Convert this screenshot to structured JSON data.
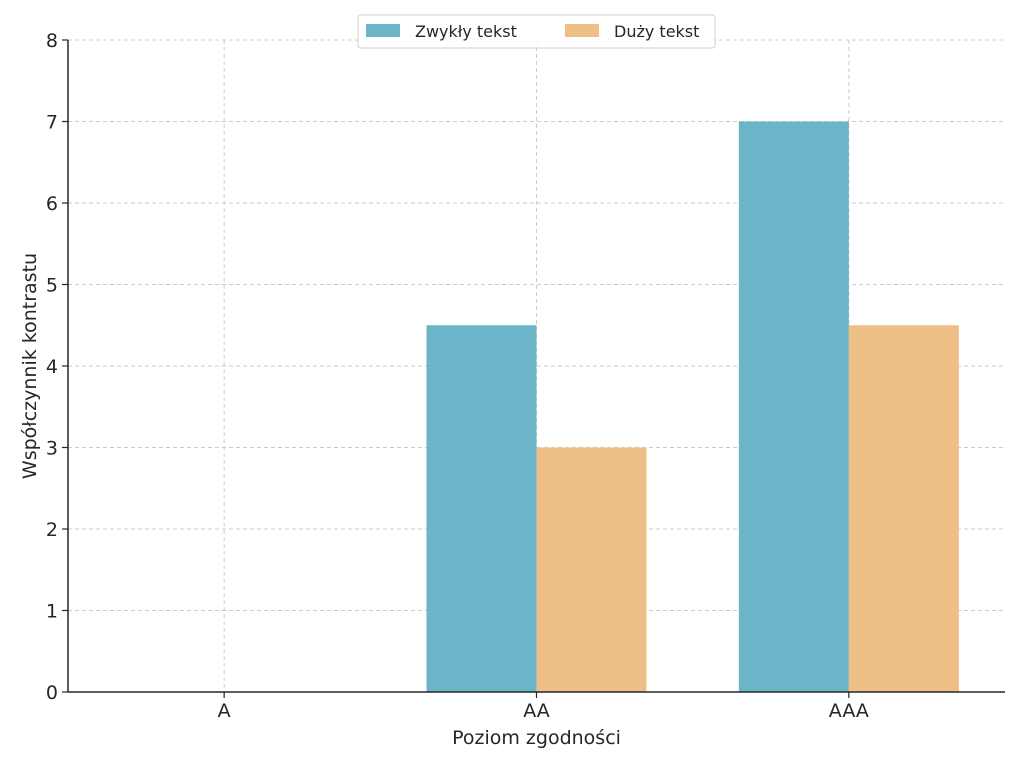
{
  "chart_data": {
    "type": "bar",
    "title": "",
    "xlabel": "Poziom zgodności",
    "ylabel": "Współczynnik kontrastu",
    "categories": [
      "A",
      "AA",
      "AAA"
    ],
    "series": [
      {
        "name": "Zwykły tekst",
        "values": [
          0,
          4.5,
          7
        ],
        "color": "#6bb5c9"
      },
      {
        "name": "Duży tekst",
        "values": [
          0,
          3,
          4.5
        ],
        "color": "#efbf88"
      }
    ],
    "ylim": [
      0,
      8
    ],
    "yticks": [
      "0",
      "1",
      "2",
      "3",
      "4",
      "5",
      "6",
      "7",
      "8"
    ],
    "grid": true,
    "legend_position": "top-center"
  }
}
